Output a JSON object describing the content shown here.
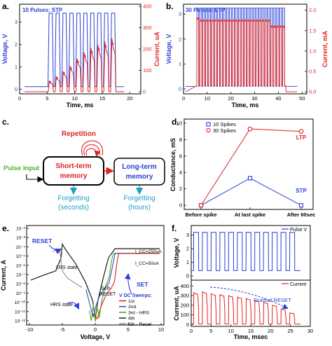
{
  "panels": {
    "a": {
      "letter": "a.",
      "inset": "10 Pulses: STP",
      "xlabel": "Time, ms",
      "ylabel_left": "Voltage, V",
      "ylabel_right": "Current, uA",
      "xticks": [
        "0",
        "5",
        "10",
        "15",
        "20"
      ],
      "yticks_left": [
        "0",
        "1",
        "2",
        "3"
      ],
      "yticks_right": [
        "0",
        "100",
        "200",
        "300",
        "400"
      ]
    },
    "b": {
      "letter": "b.",
      "inset": "30 Pulses: LTP",
      "xlabel": "Time, ms",
      "ylabel_left": "Voltage, V",
      "ylabel_right": "Current, mA",
      "xticks": [
        "0",
        "10",
        "20",
        "30",
        "40",
        "50"
      ],
      "yticks_left": [
        "0",
        "1",
        "2",
        "3"
      ],
      "yticks_right": [
        "0.0",
        "0.5",
        "1.0",
        "1.5",
        "2.0"
      ]
    },
    "c": {
      "letter": "c.",
      "repetition": "Repetition",
      "pulse_input": "Pulse Input",
      "stm_line1": "Short-term",
      "stm_line2": "memory",
      "ltm_line1": "Long-term",
      "ltm_line2": "memory",
      "forget1_line1": "Forgetting",
      "forget1_line2": "(seconds)",
      "forget2_line1": "Forgetting",
      "forget2_line2": "(hours)"
    },
    "d": {
      "letter": "d.",
      "ylabel": "Conductance, mS",
      "yticks": [
        "0",
        "2",
        "4",
        "6",
        "8",
        "10"
      ],
      "ltp_label": "LTP",
      "stp_label": "STP"
    },
    "e": {
      "letter": "e.",
      "xlabel": "Voltage, V",
      "ylabel": "Current, A",
      "xticks": [
        "-10",
        "-5",
        "0",
        "5",
        "10"
      ],
      "yticks": [
        "10⁻¹²",
        "10⁻¹¹",
        "10⁻¹⁰",
        "10⁻⁹",
        "10⁻⁸",
        "10⁻⁷",
        "10⁻⁶",
        "10⁻⁵",
        "10⁻⁴",
        "10⁻³",
        "10⁻²"
      ],
      "reset": "RESET",
      "lrs": "LRS state",
      "hrs": "HRS state",
      "set": "SET",
      "self_reset_1": "Self-",
      "self_reset_2": "RESET",
      "icc1": "I_CC=250uA",
      "icc2": "I_CC=50uA",
      "legend_title": "V DC Sweeps:",
      "legend": [
        "1st",
        "2nd",
        "3rd - HRS",
        "4th",
        "5th - Reset"
      ],
      "legend_colors": [
        "#e02020",
        "#3050d0",
        "#40b020",
        "#2a2a2a",
        "#909090"
      ]
    },
    "f": {
      "letter": "f.",
      "xlabel": "Time, msec",
      "ylabel_top": "Voltage, V",
      "ylabel_bottom": "Current, uA",
      "xticks": [
        "0",
        "5",
        "10",
        "15",
        "20",
        "25",
        "30"
      ],
      "yticks_top": [
        "0",
        "1",
        "2",
        "3"
      ],
      "yticks_bottom": [
        "0",
        "100",
        "200",
        "300",
        "400"
      ],
      "legend_top": "Pulse V",
      "legend_bottom": "Current",
      "gradual_reset": "Gradual RESET"
    }
  },
  "colors": {
    "blue": "#2a3fd6",
    "red": "#e02222",
    "green": "#55b02a",
    "teal": "#1e9ec8"
  },
  "chart_data": [
    {
      "panel": "d",
      "type": "line",
      "categories": [
        "Before spike",
        "At last spike",
        "After 60sec"
      ],
      "series": [
        {
          "name": "10 Spikes",
          "marker": "square",
          "color": "#2a3fd6",
          "values": [
            0,
            3.3,
            0
          ]
        },
        {
          "name": "30 Spikes",
          "marker": "circle",
          "color": "#e02222",
          "values": [
            0,
            9.3,
            9.0
          ]
        }
      ],
      "ylim": [
        -0.5,
        10.5
      ]
    },
    {
      "panel": "a",
      "type": "line",
      "x_range": [
        0,
        22
      ],
      "voltage_pulses": {
        "count": 10,
        "start_ms": 5.2,
        "period_ms": 1.26,
        "width_ms": 0.78,
        "amplitude_v": 3.4
      },
      "current_peaks_uA": [
        50,
        70,
        95,
        120,
        155,
        185,
        205,
        220,
        235,
        250
      ],
      "ylim_left": [
        -0.2,
        3.8
      ],
      "ylim_right": [
        -10,
        410
      ]
    },
    {
      "panel": "b",
      "type": "line",
      "x_range": [
        0,
        52
      ],
      "voltage_pulses": {
        "count": 30,
        "start_ms": 5.6,
        "period_ms": 1.25,
        "width_ms": 0.8,
        "amplitude_v": 3.25
      },
      "current_mA": {
        "first_peak": 1.8,
        "plateau": 1.75,
        "late_plateau": 1.6,
        "late_from_pulse": 25
      },
      "ylim_left": [
        -0.2,
        3.4
      ],
      "ylim_right": [
        -0.05,
        2.15
      ]
    },
    {
      "panel": "f",
      "type": "line",
      "x_range": [
        0,
        30
      ],
      "voltage_pulses": {
        "count": 12,
        "start_ms": 0.6,
        "period_ms": 2.2,
        "width_ms": 1.25,
        "high_v": 3.2,
        "low_v": 0.4
      },
      "current_peaks_uA": [
        330,
        340,
        320,
        310,
        300,
        285,
        270,
        250,
        230,
        200,
        160,
        120
      ],
      "ylim_top": [
        -0.3,
        3.7
      ],
      "ylim_bottom": [
        -20,
        460
      ]
    }
  ]
}
